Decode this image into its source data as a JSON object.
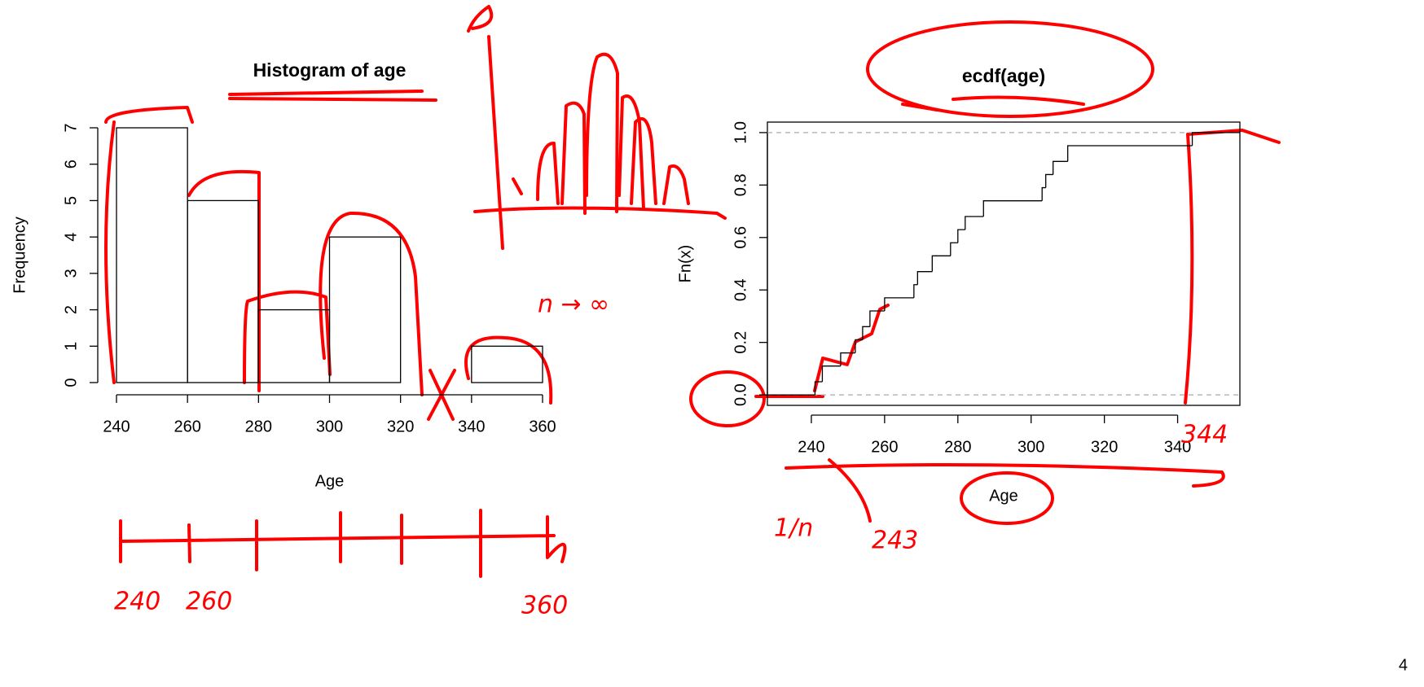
{
  "chart_data": [
    {
      "type": "histogram",
      "title": "Histogram of age",
      "x_label": "Age",
      "y_label": "Frequency",
      "bins": [
        240,
        260,
        280,
        300,
        320,
        340,
        360
      ],
      "values": [
        7,
        5,
        2,
        4,
        0,
        1
      ],
      "color": "#000000",
      "xlim": [
        240,
        360
      ],
      "xticks": [
        240,
        260,
        280,
        300,
        320,
        340,
        360
      ],
      "ylim": [
        0,
        7
      ],
      "yticks": [
        0,
        1,
        2,
        3,
        4,
        5,
        6,
        7
      ]
    },
    {
      "type": "ecdf",
      "title": "ecdf(age)",
      "x_label": "Age",
      "y_label": "Fn(x)",
      "x": [
        241,
        243,
        248,
        252,
        254,
        256,
        260,
        268,
        269,
        273,
        278,
        280,
        282,
        287,
        303,
        304,
        306,
        310,
        344
      ],
      "values": [
        0.05,
        0.11,
        0.16,
        0.21,
        0.26,
        0.32,
        0.37,
        0.42,
        0.47,
        0.53,
        0.58,
        0.63,
        0.68,
        0.74,
        0.79,
        0.84,
        0.89,
        0.95,
        1.0
      ],
      "color": "#000000",
      "xlim": [
        228,
        357
      ],
      "xticks": [
        240,
        260,
        280,
        300,
        320,
        340
      ],
      "ylim": [
        -0.04,
        1.04
      ],
      "yticks": [
        {
          "value": 0,
          "label": "0.0"
        },
        0.2,
        0.4,
        0.6,
        0.8,
        {
          "value": 1,
          "label": "1.0"
        }
      ],
      "hlines": [
        0,
        1
      ]
    }
  ],
  "slide": {
    "page_number": "4",
    "annotations": [
      "240",
      "260",
      "360",
      "n → ∞",
      "1/n",
      "243",
      "344"
    ]
  }
}
